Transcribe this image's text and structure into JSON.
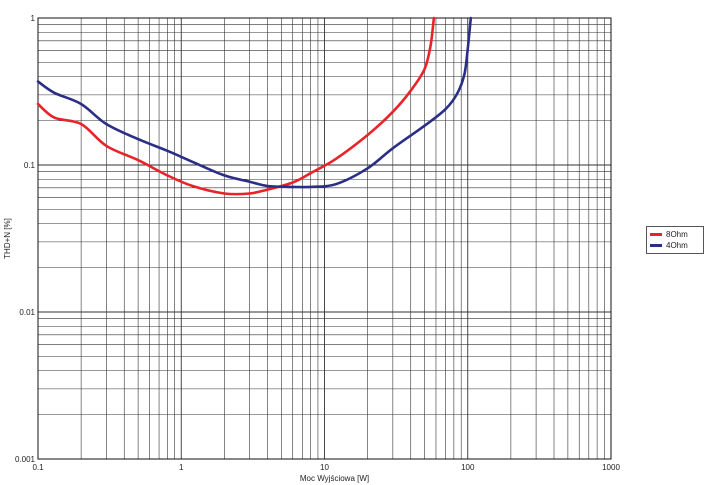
{
  "chart_data": {
    "type": "line",
    "title": "",
    "xlabel": "Moc Wyjściowa [W]",
    "ylabel": "THD+N [%]",
    "x_scale": "log",
    "y_scale": "log",
    "xlim": [
      0.1,
      1000
    ],
    "ylim": [
      0.001,
      1
    ],
    "x_ticks": [
      "0.1",
      "1",
      "10",
      "100",
      "1000"
    ],
    "y_ticks": [
      "0.001",
      "0.01",
      "0.1",
      "1"
    ],
    "grid": true,
    "legend_position": "right",
    "series": [
      {
        "name": "8Ohm",
        "color": "#e8232a",
        "x": [
          0.1,
          0.13,
          0.2,
          0.3,
          0.5,
          0.8,
          1.2,
          2,
          3,
          4,
          6,
          8,
          12,
          20,
          30,
          40,
          50,
          55,
          58
        ],
        "y": [
          0.26,
          0.21,
          0.19,
          0.135,
          0.108,
          0.085,
          0.072,
          0.064,
          0.064,
          0.068,
          0.076,
          0.088,
          0.11,
          0.16,
          0.23,
          0.32,
          0.45,
          0.65,
          1.0
        ]
      },
      {
        "name": "4Ohm",
        "color": "#2b2e86",
        "x": [
          0.1,
          0.13,
          0.2,
          0.3,
          0.5,
          0.8,
          1.2,
          2,
          3,
          4,
          6,
          8,
          12,
          20,
          30,
          50,
          70,
          85,
          95,
          100,
          105
        ],
        "y": [
          0.37,
          0.31,
          0.26,
          0.19,
          0.15,
          0.125,
          0.105,
          0.085,
          0.077,
          0.072,
          0.071,
          0.071,
          0.074,
          0.095,
          0.13,
          0.185,
          0.24,
          0.31,
          0.42,
          0.62,
          1.0
        ]
      }
    ]
  }
}
